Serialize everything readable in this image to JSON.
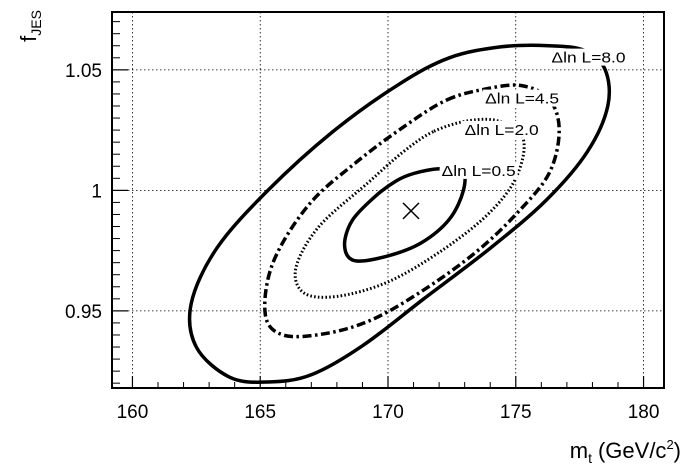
{
  "chart_data": {
    "type": "contour",
    "xlabel": {
      "main": "m",
      "sub": "t",
      "unit_pre": "(GeV/c",
      "unit_sup": "2",
      "unit_post": ")"
    },
    "ylabel": {
      "main": "f",
      "sub": "JES"
    },
    "xlim": [
      159.2,
      180.8
    ],
    "ylim": [
      0.918,
      1.074
    ],
    "xticks": [
      {
        "value": 160,
        "label": "160"
      },
      {
        "value": 165,
        "label": "165"
      },
      {
        "value": 170,
        "label": "170"
      },
      {
        "value": 175,
        "label": "175"
      },
      {
        "value": 180,
        "label": "180"
      }
    ],
    "yticks": [
      {
        "value": 0.95,
        "label": "0.95"
      },
      {
        "value": 1.0,
        "label": "1"
      },
      {
        "value": 1.05,
        "label": "1.05"
      }
    ],
    "grid": true,
    "best_fit": {
      "x": 170.9,
      "y": 0.9915,
      "marker": "x"
    },
    "contours": [
      {
        "label": "Δln L=0.5",
        "level": 0.5,
        "style": "solid",
        "label_at": [
          172.1,
          1.006
        ],
        "points": [
          [
            170.3,
            1.0038
          ],
          [
            171.0,
            1.007
          ],
          [
            172.0,
            1.009
          ],
          [
            172.9,
            1.0082
          ],
          [
            172.95,
            1.0
          ],
          [
            172.4,
            0.988
          ],
          [
            171.3,
            0.9782
          ],
          [
            170.0,
            0.9728
          ],
          [
            168.7,
            0.9708
          ],
          [
            168.3,
            0.977
          ],
          [
            168.6,
            0.9875
          ],
          [
            169.5,
            0.9975
          ],
          [
            170.3,
            1.0038
          ]
        ]
      },
      {
        "label": "Δln L=2.0",
        "level": 2.0,
        "style": "dotted",
        "label_at": [
          173.0,
          1.023
        ],
        "points": [
          [
            171.8,
            1.0245
          ],
          [
            173.2,
            1.029
          ],
          [
            174.4,
            1.0285
          ],
          [
            175.3,
            1.021
          ],
          [
            175.0,
            1.005
          ],
          [
            173.9,
            0.99
          ],
          [
            172.1,
            0.975
          ],
          [
            170.0,
            0.962
          ],
          [
            168.0,
            0.956
          ],
          [
            166.7,
            0.9575
          ],
          [
            166.4,
            0.968
          ],
          [
            167.3,
            0.985
          ],
          [
            169.2,
            1.003
          ],
          [
            170.6,
            1.016
          ],
          [
            171.8,
            1.0245
          ]
        ]
      },
      {
        "label": "Δln L=4.5",
        "level": 4.5,
        "style": "dashdot",
        "label_at": [
          173.8,
          1.036
        ],
        "points": [
          [
            172.3,
            1.0375
          ],
          [
            173.8,
            1.042
          ],
          [
            175.2,
            1.0435
          ],
          [
            176.3,
            1.038
          ],
          [
            176.7,
            1.025
          ],
          [
            176.3,
            1.007
          ],
          [
            175.0,
            0.99
          ],
          [
            173.4,
            0.974
          ],
          [
            171.3,
            0.958
          ],
          [
            169.3,
            0.946
          ],
          [
            167.5,
            0.9405
          ],
          [
            165.9,
            0.94
          ],
          [
            165.2,
            0.9485
          ],
          [
            165.5,
            0.97
          ],
          [
            166.9,
            0.994
          ],
          [
            168.8,
            1.012
          ],
          [
            170.7,
            1.027
          ],
          [
            172.3,
            1.0375
          ]
        ]
      },
      {
        "label": "Δln L=8.0",
        "level": 8.0,
        "style": "solid",
        "label_at": [
          176.4,
          1.053
        ],
        "points": [
          [
            170.4,
            1.0438
          ],
          [
            172.4,
            1.055
          ],
          [
            174.4,
            1.0595
          ],
          [
            176.3,
            1.06
          ],
          [
            177.7,
            1.058
          ],
          [
            178.5,
            1.05
          ],
          [
            178.6,
            1.035
          ],
          [
            177.8,
            1.016
          ],
          [
            176.2,
            0.996
          ],
          [
            174.0,
            0.976
          ],
          [
            171.4,
            0.955
          ],
          [
            169.0,
            0.9355
          ],
          [
            167.0,
            0.9235
          ],
          [
            165.3,
            0.9205
          ],
          [
            163.8,
            0.9225
          ],
          [
            162.5,
            0.935
          ],
          [
            162.3,
            0.953
          ],
          [
            163.3,
            0.976
          ],
          [
            165.3,
            1.0
          ],
          [
            167.8,
            1.024
          ],
          [
            170.4,
            1.0438
          ]
        ]
      }
    ]
  }
}
